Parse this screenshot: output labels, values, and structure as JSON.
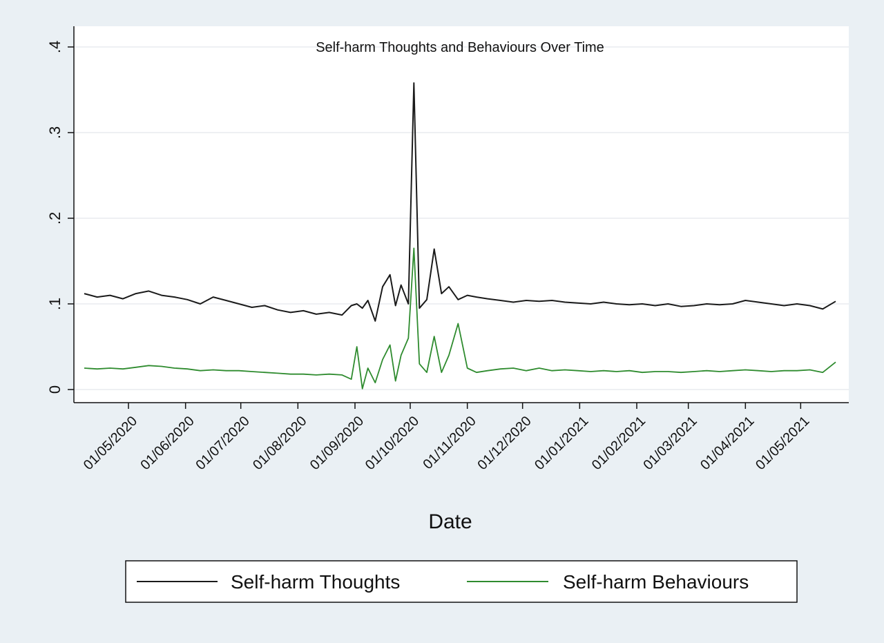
{
  "chart_data": {
    "type": "line",
    "title": "Self-harm Thoughts and Behaviours Over Time",
    "xlabel": "Date",
    "ylabel": "",
    "x_start": "2020-04-07",
    "x_end": "2021-05-20",
    "x_axis_type": "date",
    "ylim": [
      0,
      0.4
    ],
    "yticks": [
      0,
      0.1,
      0.2,
      0.3,
      0.4
    ],
    "ytick_labels": [
      "0",
      ".1",
      ".2",
      ".3",
      ".4"
    ],
    "xticks": [
      "2020-05-01",
      "2020-06-01",
      "2020-07-01",
      "2020-08-01",
      "2020-09-01",
      "2020-10-01",
      "2020-11-01",
      "2020-12-01",
      "2021-01-01",
      "2021-02-01",
      "2021-03-01",
      "2021-04-01",
      "2021-05-01"
    ],
    "xtick_labels": [
      "01/05/2020",
      "01/06/2020",
      "01/07/2020",
      "01/08/2020",
      "01/09/2020",
      "01/10/2020",
      "01/11/2020",
      "01/12/2020",
      "01/01/2021",
      "01/02/2021",
      "01/03/2021",
      "01/04/2021",
      "01/05/2021"
    ],
    "grid": true,
    "legend_position": "bottom",
    "series": [
      {
        "name": "Self-harm Thoughts",
        "color": "#1a1a1a",
        "points": [
          [
            "2020-04-07",
            0.112
          ],
          [
            "2020-04-14",
            0.108
          ],
          [
            "2020-04-21",
            0.11
          ],
          [
            "2020-04-28",
            0.106
          ],
          [
            "2020-05-05",
            0.112
          ],
          [
            "2020-05-12",
            0.115
          ],
          [
            "2020-05-19",
            0.11
          ],
          [
            "2020-05-26",
            0.108
          ],
          [
            "2020-06-02",
            0.105
          ],
          [
            "2020-06-09",
            0.1
          ],
          [
            "2020-06-16",
            0.108
          ],
          [
            "2020-06-23",
            0.104
          ],
          [
            "2020-06-30",
            0.1
          ],
          [
            "2020-07-07",
            0.096
          ],
          [
            "2020-07-14",
            0.098
          ],
          [
            "2020-07-21",
            0.093
          ],
          [
            "2020-07-28",
            0.09
          ],
          [
            "2020-08-04",
            0.092
          ],
          [
            "2020-08-11",
            0.088
          ],
          [
            "2020-08-18",
            0.09
          ],
          [
            "2020-08-25",
            0.087
          ],
          [
            "2020-08-30",
            0.098
          ],
          [
            "2020-09-02",
            0.1
          ],
          [
            "2020-09-05",
            0.095
          ],
          [
            "2020-09-08",
            0.104
          ],
          [
            "2020-09-12",
            0.08
          ],
          [
            "2020-09-16",
            0.12
          ],
          [
            "2020-09-20",
            0.134
          ],
          [
            "2020-09-23",
            0.098
          ],
          [
            "2020-09-26",
            0.122
          ],
          [
            "2020-09-30",
            0.1
          ],
          [
            "2020-10-03",
            0.358
          ],
          [
            "2020-10-06",
            0.095
          ],
          [
            "2020-10-10",
            0.105
          ],
          [
            "2020-10-14",
            0.164
          ],
          [
            "2020-10-18",
            0.112
          ],
          [
            "2020-10-22",
            0.12
          ],
          [
            "2020-10-27",
            0.105
          ],
          [
            "2020-11-01",
            0.11
          ],
          [
            "2020-11-06",
            0.108
          ],
          [
            "2020-11-12",
            0.106
          ],
          [
            "2020-11-19",
            0.104
          ],
          [
            "2020-11-26",
            0.102
          ],
          [
            "2020-12-03",
            0.104
          ],
          [
            "2020-12-10",
            0.103
          ],
          [
            "2020-12-17",
            0.104
          ],
          [
            "2020-12-24",
            0.102
          ],
          [
            "2020-12-31",
            0.101
          ],
          [
            "2021-01-07",
            0.1
          ],
          [
            "2021-01-14",
            0.102
          ],
          [
            "2021-01-21",
            0.1
          ],
          [
            "2021-01-28",
            0.099
          ],
          [
            "2021-02-04",
            0.1
          ],
          [
            "2021-02-11",
            0.098
          ],
          [
            "2021-02-18",
            0.1
          ],
          [
            "2021-02-25",
            0.097
          ],
          [
            "2021-03-04",
            0.098
          ],
          [
            "2021-03-11",
            0.1
          ],
          [
            "2021-03-18",
            0.099
          ],
          [
            "2021-03-25",
            0.1
          ],
          [
            "2021-04-01",
            0.104
          ],
          [
            "2021-04-08",
            0.102
          ],
          [
            "2021-04-15",
            0.1
          ],
          [
            "2021-04-22",
            0.098
          ],
          [
            "2021-04-29",
            0.1
          ],
          [
            "2021-05-06",
            0.098
          ],
          [
            "2021-05-13",
            0.094
          ],
          [
            "2021-05-20",
            0.103
          ]
        ]
      },
      {
        "name": "Self-harm Behaviours",
        "color": "#2e8b2e",
        "points": [
          [
            "2020-04-07",
            0.025
          ],
          [
            "2020-04-14",
            0.024
          ],
          [
            "2020-04-21",
            0.025
          ],
          [
            "2020-04-28",
            0.024
          ],
          [
            "2020-05-05",
            0.026
          ],
          [
            "2020-05-12",
            0.028
          ],
          [
            "2020-05-19",
            0.027
          ],
          [
            "2020-05-26",
            0.025
          ],
          [
            "2020-06-02",
            0.024
          ],
          [
            "2020-06-09",
            0.022
          ],
          [
            "2020-06-16",
            0.023
          ],
          [
            "2020-06-23",
            0.022
          ],
          [
            "2020-06-30",
            0.022
          ],
          [
            "2020-07-07",
            0.021
          ],
          [
            "2020-07-14",
            0.02
          ],
          [
            "2020-07-21",
            0.019
          ],
          [
            "2020-07-28",
            0.018
          ],
          [
            "2020-08-04",
            0.018
          ],
          [
            "2020-08-11",
            0.017
          ],
          [
            "2020-08-18",
            0.018
          ],
          [
            "2020-08-25",
            0.017
          ],
          [
            "2020-08-30",
            0.012
          ],
          [
            "2020-09-02",
            0.05
          ],
          [
            "2020-09-05",
            0.001
          ],
          [
            "2020-09-08",
            0.025
          ],
          [
            "2020-09-12",
            0.008
          ],
          [
            "2020-09-16",
            0.035
          ],
          [
            "2020-09-20",
            0.052
          ],
          [
            "2020-09-23",
            0.01
          ],
          [
            "2020-09-26",
            0.04
          ],
          [
            "2020-09-30",
            0.06
          ],
          [
            "2020-10-03",
            0.165
          ],
          [
            "2020-10-06",
            0.03
          ],
          [
            "2020-10-10",
            0.02
          ],
          [
            "2020-10-14",
            0.062
          ],
          [
            "2020-10-18",
            0.02
          ],
          [
            "2020-10-22",
            0.04
          ],
          [
            "2020-10-27",
            0.077
          ],
          [
            "2020-11-01",
            0.025
          ],
          [
            "2020-11-06",
            0.02
          ],
          [
            "2020-11-12",
            0.022
          ],
          [
            "2020-11-19",
            0.024
          ],
          [
            "2020-11-26",
            0.025
          ],
          [
            "2020-12-03",
            0.022
          ],
          [
            "2020-12-10",
            0.025
          ],
          [
            "2020-12-17",
            0.022
          ],
          [
            "2020-12-24",
            0.023
          ],
          [
            "2020-12-31",
            0.022
          ],
          [
            "2021-01-07",
            0.021
          ],
          [
            "2021-01-14",
            0.022
          ],
          [
            "2021-01-21",
            0.021
          ],
          [
            "2021-01-28",
            0.022
          ],
          [
            "2021-02-04",
            0.02
          ],
          [
            "2021-02-11",
            0.021
          ],
          [
            "2021-02-18",
            0.021
          ],
          [
            "2021-02-25",
            0.02
          ],
          [
            "2021-03-04",
            0.021
          ],
          [
            "2021-03-11",
            0.022
          ],
          [
            "2021-03-18",
            0.021
          ],
          [
            "2021-03-25",
            0.022
          ],
          [
            "2021-04-01",
            0.023
          ],
          [
            "2021-04-08",
            0.022
          ],
          [
            "2021-04-15",
            0.021
          ],
          [
            "2021-04-22",
            0.022
          ],
          [
            "2021-04-29",
            0.022
          ],
          [
            "2021-05-06",
            0.023
          ],
          [
            "2021-05-13",
            0.02
          ],
          [
            "2021-05-20",
            0.032
          ]
        ]
      }
    ]
  }
}
